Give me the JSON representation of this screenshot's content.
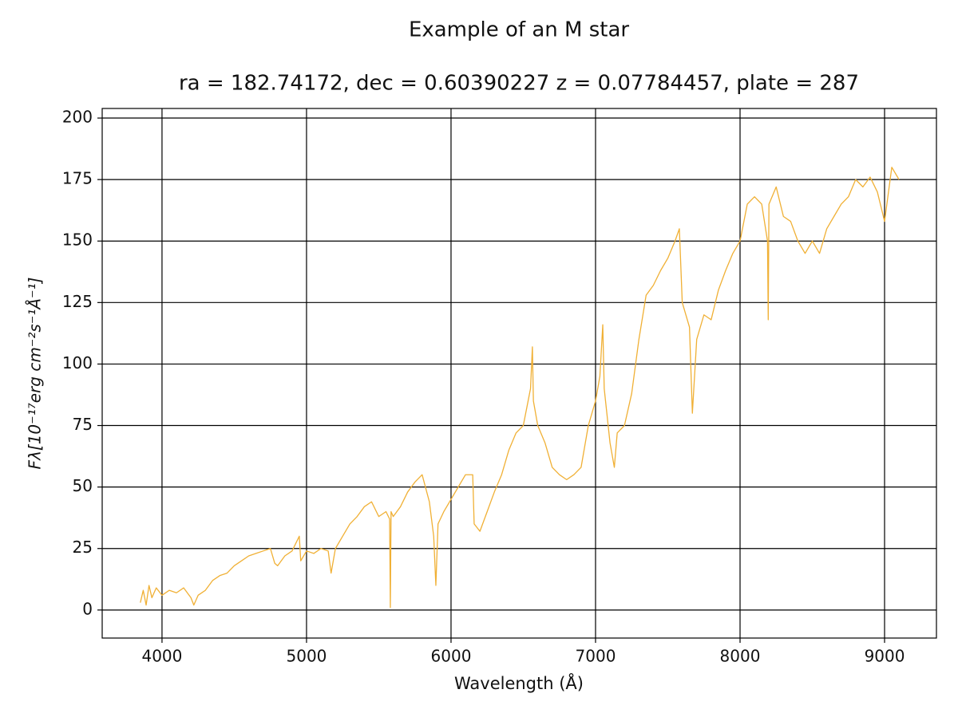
{
  "chart_data": {
    "type": "line",
    "title": "Example of an M star",
    "subtitle": "ra = 182.74172, dec = 0.60390227 z = 0.07784457, plate = 287",
    "x_label": "Wavelength (Å)",
    "y_label": "Fλ[10⁻¹⁷erg cm⁻²s⁻¹Å⁻¹]",
    "xlim": [
      3586,
      9359
    ],
    "ylim": [
      -11.4,
      203.9
    ],
    "xticks": [
      4000,
      5000,
      6000,
      7000,
      8000,
      9000
    ],
    "yticks": [
      0,
      25,
      50,
      75,
      100,
      125,
      150,
      175,
      200
    ],
    "grid": true,
    "x": [
      3850,
      3870,
      3890,
      3910,
      3930,
      3960,
      4000,
      4050,
      4100,
      4150,
      4200,
      4220,
      4250,
      4300,
      4350,
      4400,
      4450,
      4500,
      4550,
      4600,
      4650,
      4700,
      4750,
      4780,
      4800,
      4850,
      4900,
      4950,
      4960,
      5000,
      5050,
      5100,
      5150,
      5170,
      5200,
      5250,
      5300,
      5350,
      5400,
      5450,
      5500,
      5550,
      5575,
      5580,
      5585,
      5600,
      5650,
      5700,
      5750,
      5800,
      5850,
      5880,
      5895,
      5910,
      5950,
      6000,
      6050,
      6100,
      6150,
      6160,
      6200,
      6250,
      6300,
      6350,
      6400,
      6450,
      6500,
      6550,
      6563,
      6570,
      6600,
      6650,
      6700,
      6750,
      6800,
      6850,
      6900,
      6950,
      7000,
      7030,
      7050,
      7060,
      7100,
      7130,
      7150,
      7200,
      7250,
      7300,
      7350,
      7400,
      7450,
      7500,
      7550,
      7580,
      7600,
      7650,
      7670,
      7700,
      7750,
      7800,
      7850,
      7900,
      7950,
      8000,
      8050,
      8100,
      8150,
      8190,
      8195,
      8200,
      8250,
      8300,
      8350,
      8400,
      8450,
      8500,
      8550,
      8600,
      8650,
      8700,
      8750,
      8800,
      8850,
      8900,
      8950,
      9000,
      9050,
      9100
    ],
    "series": [
      {
        "color": "#f0b035",
        "values": [
          3,
          8,
          2,
          10,
          5,
          9,
          6,
          8,
          7,
          9,
          5,
          2,
          6,
          8,
          12,
          14,
          15,
          18,
          20,
          22,
          23,
          24,
          25,
          19,
          18,
          22,
          24,
          30,
          20,
          24,
          23,
          25,
          24,
          15,
          25,
          30,
          35,
          38,
          42,
          44,
          38,
          40,
          37,
          1,
          40,
          38,
          42,
          48,
          52,
          55,
          44,
          30,
          10,
          35,
          40,
          45,
          50,
          55,
          55,
          35,
          32,
          40,
          48,
          55,
          65,
          72,
          75,
          90,
          107,
          85,
          75,
          68,
          58,
          55,
          53,
          55,
          58,
          75,
          85,
          95,
          116,
          90,
          68,
          58,
          72,
          75,
          88,
          110,
          128,
          132,
          138,
          143,
          150,
          155,
          125,
          115,
          80,
          110,
          120,
          118,
          130,
          138,
          145,
          150,
          165,
          168,
          165,
          150,
          118,
          165,
          172,
          160,
          158,
          150,
          145,
          150,
          145,
          155,
          160,
          165,
          168,
          175,
          172,
          176,
          170,
          158,
          180,
          175
        ]
      }
    ]
  }
}
